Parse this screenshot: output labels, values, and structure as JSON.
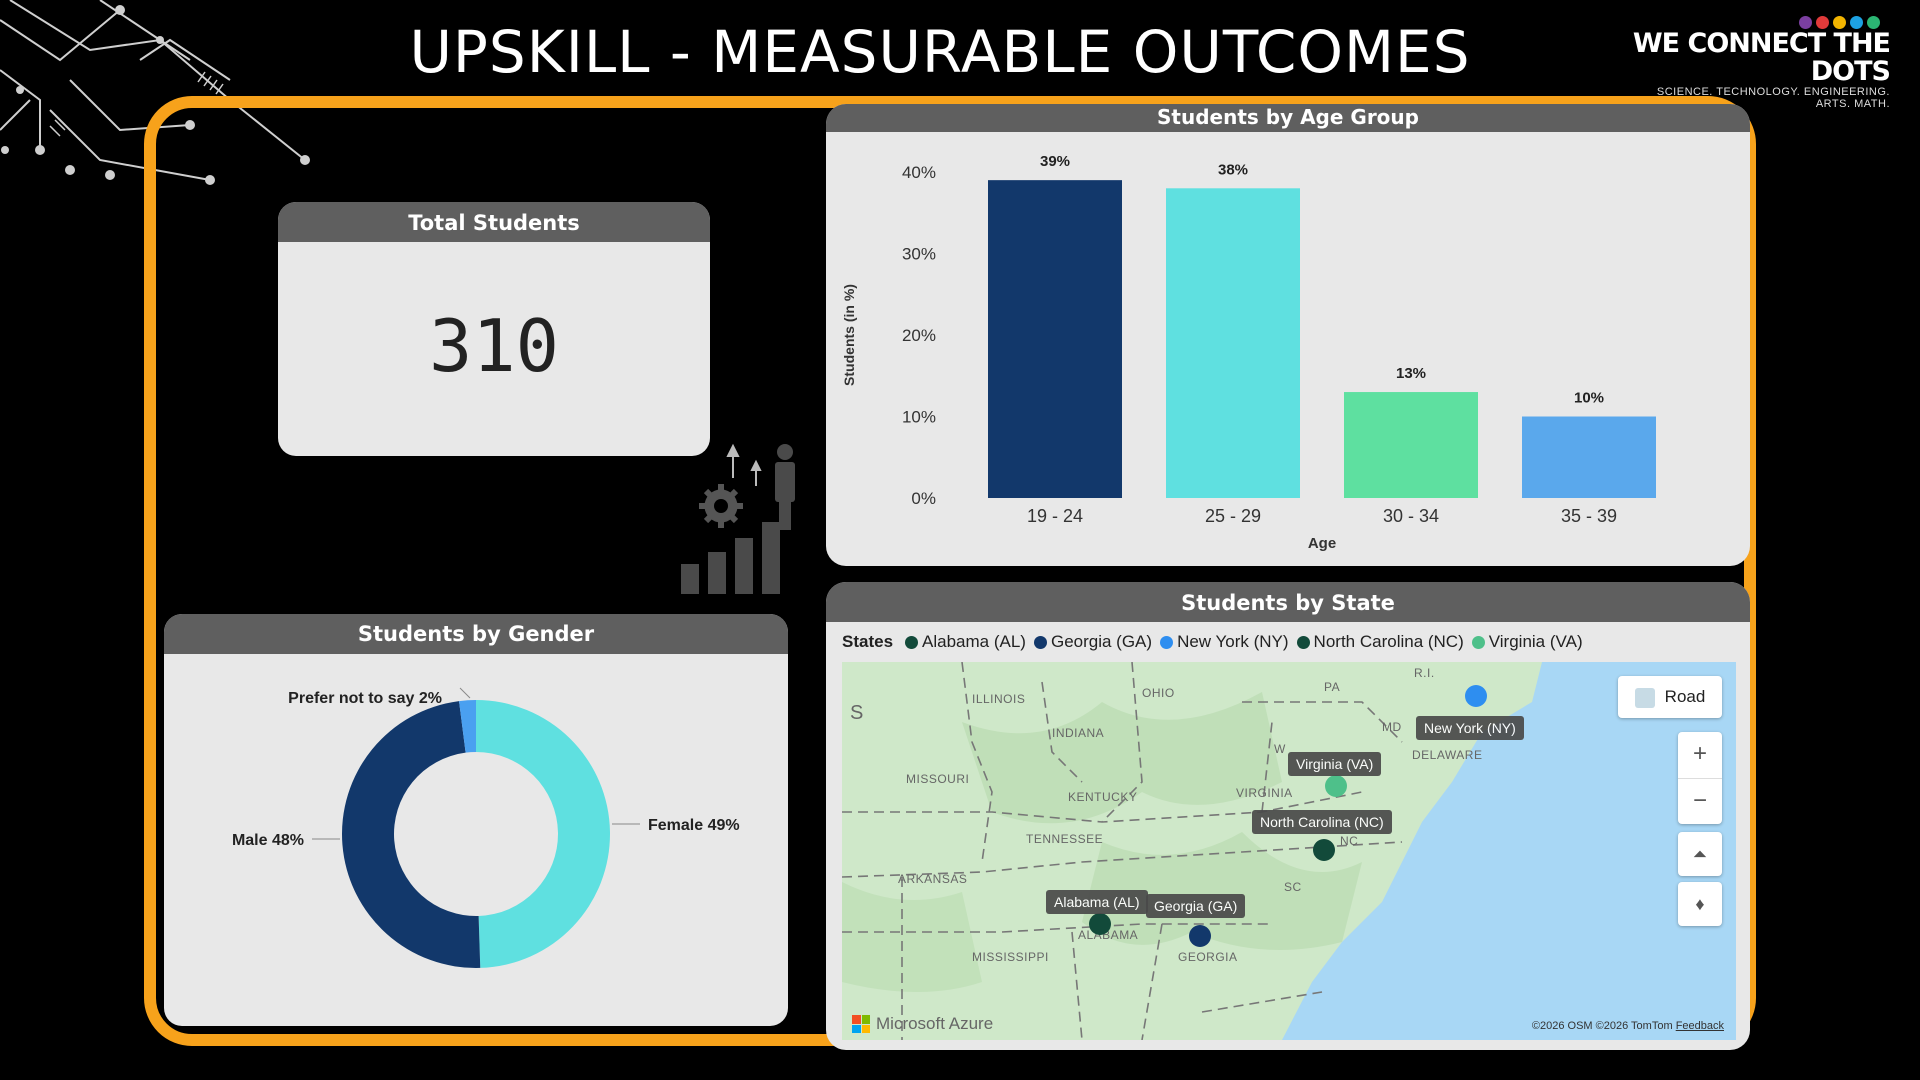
{
  "title": "UPSKILL - MEASURABLE OUTCOMES",
  "logo": {
    "main": "WE CONNECT THE DOTS",
    "sub": "SCIENCE. TECHNOLOGY. ENGINEERING. ARTS. MATH.",
    "dot_colors": [
      "#7b3fa0",
      "#e03a3a",
      "#f2b400",
      "#1da1e2",
      "#2bb673"
    ]
  },
  "total_students": {
    "header": "Total Students",
    "value": "310"
  },
  "age_chart": {
    "header": "Students by Age Group",
    "chart_data": {
      "type": "bar",
      "categories": [
        "19 - 24",
        "25 - 29",
        "30 - 34",
        "35 - 39"
      ],
      "values": [
        39,
        38,
        13,
        10
      ],
      "data_labels": [
        "39%",
        "38%",
        "13%",
        "10%"
      ],
      "colors": [
        "#12386b",
        "#5fe0e0",
        "#5ee0a0",
        "#5aa8ec"
      ],
      "xlabel": "Age",
      "ylabel": "Students (in %)",
      "yticks": [
        "0%",
        "10%",
        "20%",
        "30%",
        "40%"
      ],
      "ylim": [
        0,
        40
      ],
      "grid": false
    }
  },
  "gender_chart": {
    "header": "Students by Gender",
    "chart_data": {
      "type": "pie",
      "donut": true,
      "categories": [
        "Female",
        "Male",
        "Prefer not to say"
      ],
      "values": [
        49,
        48,
        2
      ],
      "labels": [
        "Female 49%",
        "Male 48%",
        "Prefer not to say 2%"
      ],
      "colors": [
        "#5fe0e0",
        "#12386b",
        "#4aa0f0"
      ]
    }
  },
  "state_map": {
    "header": "Students by State",
    "legend_title": "States",
    "legend": [
      {
        "label": "Alabama (AL)",
        "color": "#124a3a"
      },
      {
        "label": "Georgia (GA)",
        "color": "#12386b"
      },
      {
        "label": "New York (NY)",
        "color": "#2e8ef0"
      },
      {
        "label": "North Carolina (NC)",
        "color": "#124a3a"
      },
      {
        "label": "Virginia (VA)",
        "color": "#4ec08a"
      }
    ],
    "tooltips": {
      "ny": "New York (NY)",
      "va": "Virginia (VA)",
      "nc": "North Carolina (NC)",
      "al": "Alabama (AL)",
      "ga": "Georgia (GA)"
    },
    "place_labels": {
      "illinois": "ILLINOIS",
      "ohio": "OHIO",
      "pa": "PA",
      "indiana": "INDIANA",
      "missouri": "MISSOURI",
      "kentucky": "KENTUCKY",
      "virginia": "VIRGINIA",
      "delaware": "DELAWARE",
      "md": "MD",
      "tennessee": "TENNESSEE",
      "arkansas": "ARKANSAS",
      "nc": "NC",
      "sc": "SC",
      "alabama": "ALABAMA",
      "georgia": "GEORGIA",
      "mississippi": "MISSISSIPPI",
      "ri": "R.I.",
      "w": "W",
      "s": "S"
    },
    "road_button": "Road",
    "zoom_in": "+",
    "zoom_out": "−",
    "brand": "Microsoft Azure",
    "copyright": "©2026 OSM  ©2026 TomTom",
    "feedback": "Feedback"
  }
}
